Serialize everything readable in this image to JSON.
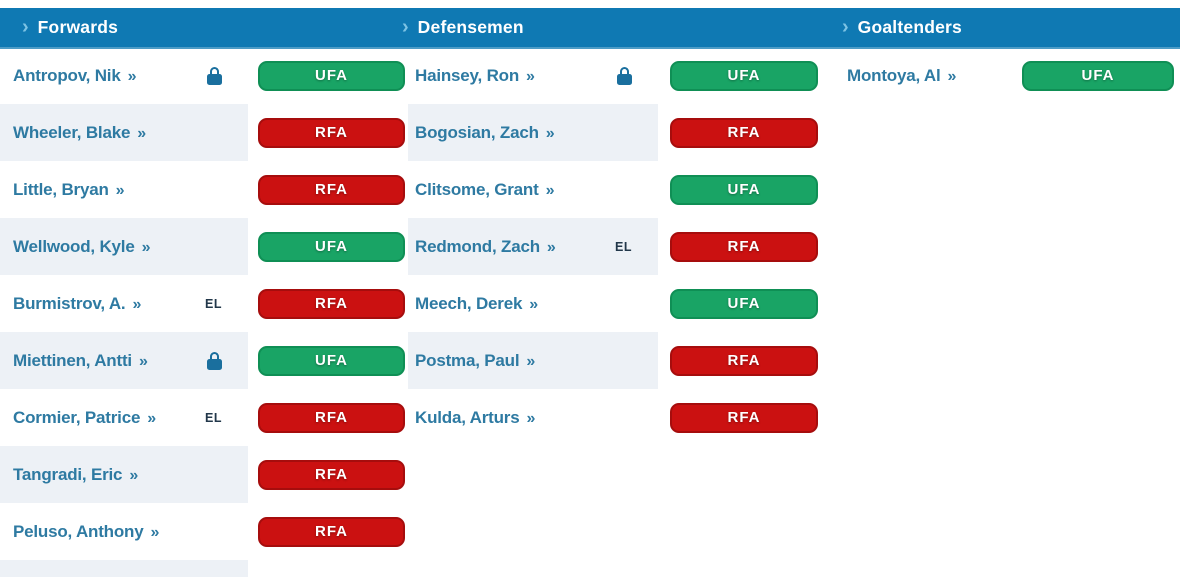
{
  "colors": {
    "header_bg": "#0f79b3",
    "header_text": "#ffffff",
    "chevron": "#7cc3e4",
    "name": "#2e7aa2",
    "lock": "#1a6f9e",
    "el": "#22374a",
    "stripe": "#edf1f6",
    "ufa_bg": "#19a465",
    "ufa_border": "#0f8f55",
    "rfa_bg": "#cb1111",
    "rfa_border": "#a60d0d",
    "badge_text": "#ffffff"
  },
  "symbols": {
    "header_chevron": "›",
    "name_arrow": "»",
    "el_label": "EL"
  },
  "columns": [
    {
      "id": "forwards",
      "header": "Forwards",
      "players": [
        {
          "name": "Antropov, Nik",
          "lock": true,
          "el": false,
          "status": "UFA"
        },
        {
          "name": "Wheeler, Blake",
          "lock": false,
          "el": false,
          "status": "RFA"
        },
        {
          "name": "Little, Bryan",
          "lock": false,
          "el": false,
          "status": "RFA"
        },
        {
          "name": "Wellwood, Kyle",
          "lock": false,
          "el": false,
          "status": "UFA"
        },
        {
          "name": "Burmistrov, A.",
          "lock": false,
          "el": true,
          "status": "RFA"
        },
        {
          "name": "Miettinen, Antti",
          "lock": true,
          "el": false,
          "status": "UFA"
        },
        {
          "name": "Cormier, Patrice",
          "lock": false,
          "el": true,
          "status": "RFA"
        },
        {
          "name": "Tangradi, Eric",
          "lock": false,
          "el": false,
          "status": "RFA"
        },
        {
          "name": "Peluso, Anthony",
          "lock": false,
          "el": false,
          "status": "RFA"
        }
      ]
    },
    {
      "id": "defensemen",
      "header": "Defensemen",
      "players": [
        {
          "name": "Hainsey, Ron",
          "lock": true,
          "el": false,
          "status": "UFA"
        },
        {
          "name": "Bogosian, Zach",
          "lock": false,
          "el": false,
          "status": "RFA"
        },
        {
          "name": "Clitsome, Grant",
          "lock": false,
          "el": false,
          "status": "UFA"
        },
        {
          "name": "Redmond, Zach",
          "lock": false,
          "el": true,
          "status": "RFA"
        },
        {
          "name": "Meech, Derek",
          "lock": false,
          "el": false,
          "status": "UFA"
        },
        {
          "name": "Postma, Paul",
          "lock": false,
          "el": false,
          "status": "RFA"
        },
        {
          "name": "Kulda, Arturs",
          "lock": false,
          "el": false,
          "status": "RFA"
        }
      ]
    },
    {
      "id": "goaltenders",
      "header": "Goaltenders",
      "players": [
        {
          "name": "Montoya, Al",
          "lock": false,
          "el": false,
          "status": "UFA"
        }
      ]
    }
  ]
}
